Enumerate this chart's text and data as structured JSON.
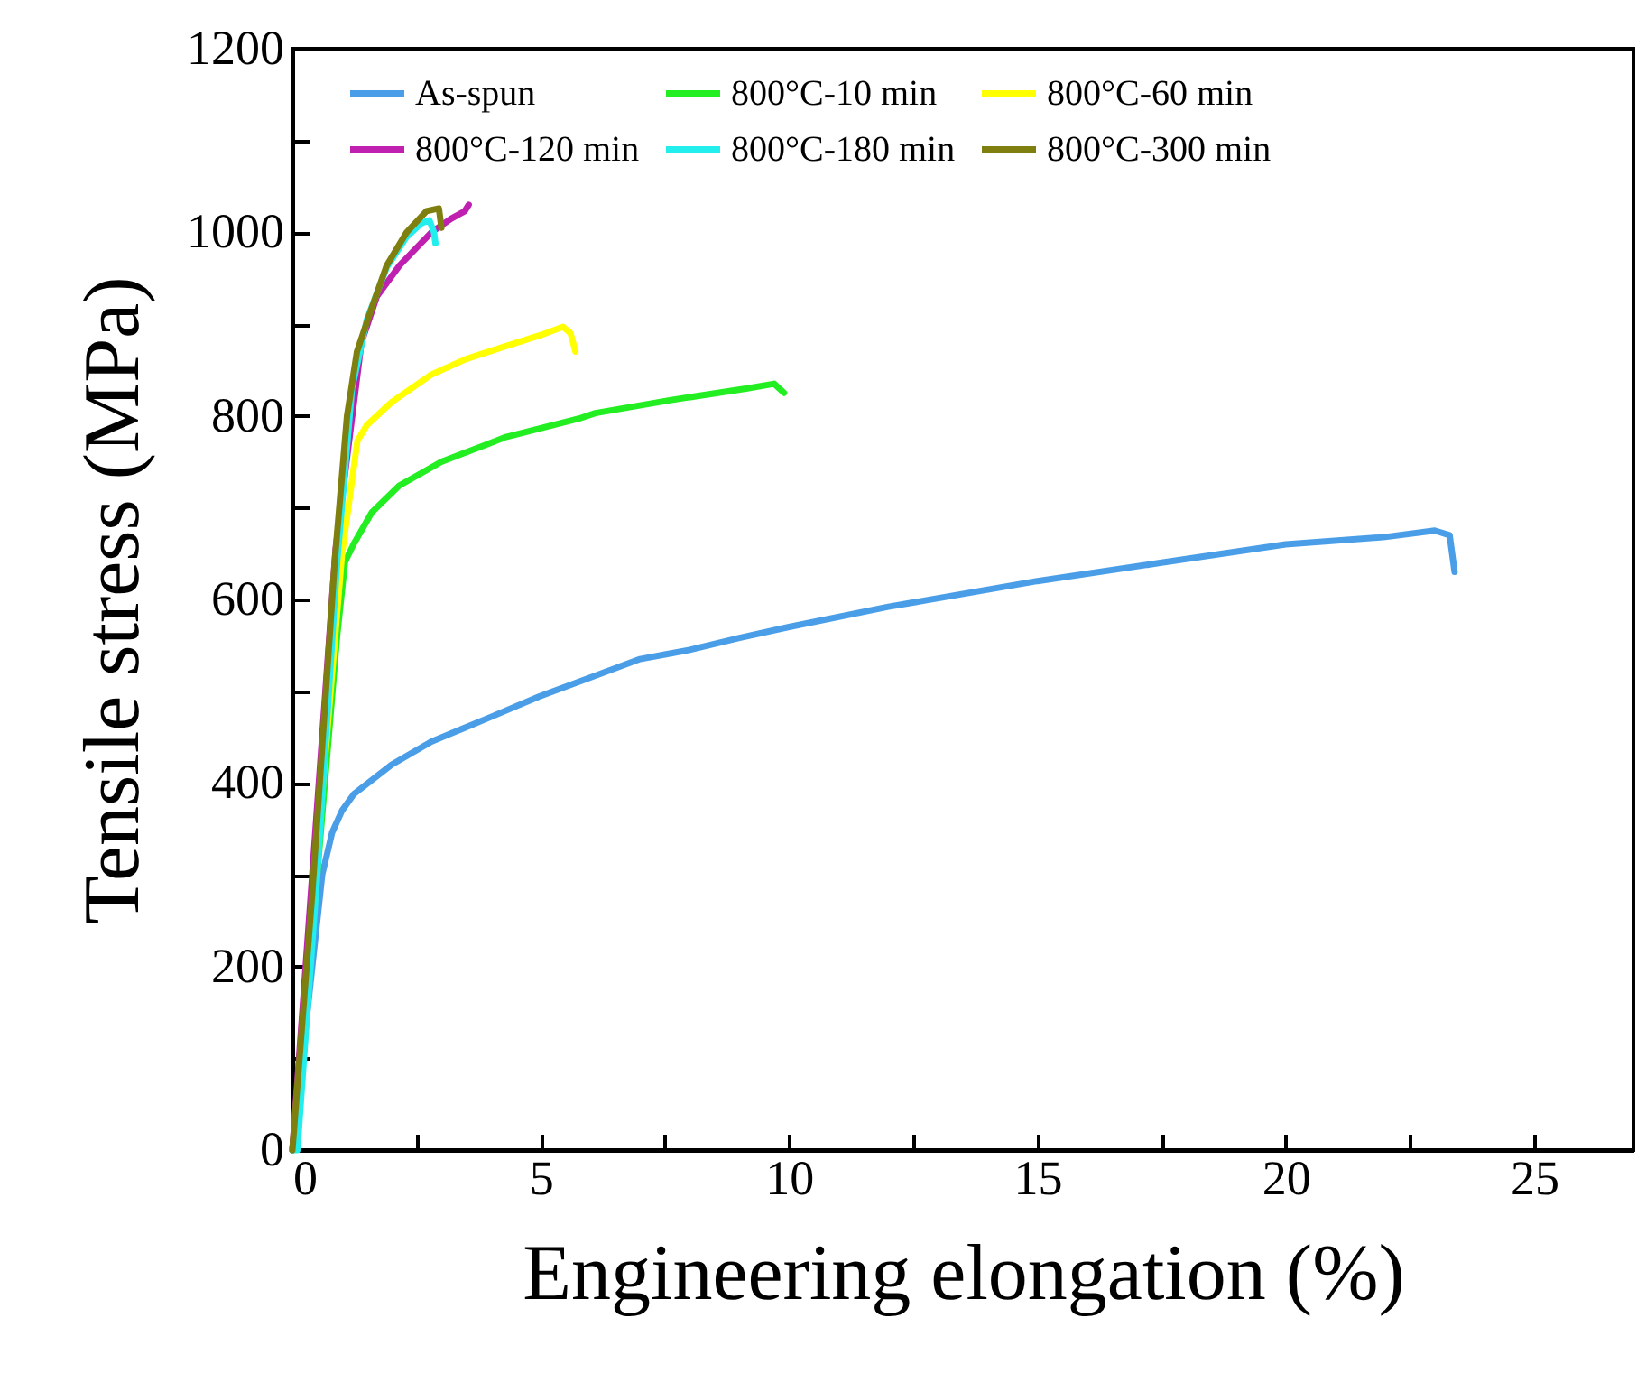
{
  "chart_data": {
    "type": "line",
    "xlabel": "Engineering elongation (%)",
    "ylabel": "Tensile stress (MPa)",
    "xlim": [
      0,
      27
    ],
    "ylim": [
      0,
      1200
    ],
    "xticks": [
      0,
      {
        "value": 2.5,
        "label": null
      },
      5,
      {
        "value": 7.5,
        "label": null
      },
      10,
      {
        "value": 12.5,
        "label": null
      },
      15,
      {
        "value": 17.5,
        "label": null
      },
      20,
      {
        "value": 22.5,
        "label": null
      },
      25
    ],
    "yticks": [
      0,
      {
        "value": 100,
        "label": null
      },
      200,
      {
        "value": 300,
        "label": null
      },
      400,
      {
        "value": 500,
        "label": null
      },
      600,
      {
        "value": 700,
        "label": null
      },
      800,
      {
        "value": 900,
        "label": null
      },
      1000,
      {
        "value": 1100,
        "label": null
      },
      1200
    ],
    "legend": "top",
    "grid": false,
    "series": [
      {
        "name": "As-spun",
        "color": "#4a9ee8",
        "x": [
          0,
          0.3,
          0.6,
          0.8,
          1.0,
          1.24,
          2,
          2.8,
          4,
          4.96,
          6,
          7,
          7.5,
          8,
          9,
          10,
          12,
          15,
          17.5,
          20,
          22,
          23,
          23.3,
          23.4
        ],
        "values": [
          0,
          150,
          300,
          346,
          370,
          388,
          420,
          445,
          472,
          494,
          515,
          535,
          540,
          545,
          558,
          570,
          592,
          620,
          640,
          660,
          668,
          675,
          670,
          630
        ]
      },
      {
        "name": "800°C-10 min",
        "color": "#22ee22",
        "x": [
          0,
          0.5,
          0.9,
          1.06,
          1.24,
          1.6,
          2.15,
          3,
          3.87,
          4.3,
          5.77,
          6.1,
          7.6,
          9.16,
          9.7,
          9.9
        ],
        "values": [
          0,
          300,
          560,
          641,
          661,
          695,
          724,
          750,
          768,
          777,
          797,
          803,
          817,
          830,
          835,
          825
        ]
      },
      {
        "name": "800°C-60 min",
        "color": "#ffff00",
        "x": [
          0,
          1.0,
          1.31,
          1.5,
          2,
          2.8,
          3.5,
          4.3,
          5,
          5.45,
          5.6,
          5.7
        ],
        "values": [
          0,
          650,
          773,
          790,
          815,
          845,
          862,
          876,
          888,
          897,
          890,
          870
        ]
      },
      {
        "name": "800°C-120 min",
        "color": "#c020b0",
        "x": [
          0,
          0.4,
          0.87,
          1.39,
          1.7,
          2.16,
          2.8,
          3.2,
          3.47,
          3.55
        ],
        "values": [
          0,
          300,
          655,
          880,
          930,
          964,
          1000,
          1015,
          1023,
          1030
        ]
      },
      {
        "name": "800°C-180 min",
        "color": "#22eeee",
        "x": [
          0,
          0.1,
          0.5,
          0.9,
          1.2,
          1.5,
          1.9,
          2.3,
          2.6,
          2.76,
          2.85,
          2.88
        ],
        "values": [
          0,
          0,
          300,
          640,
          830,
          905,
          962,
          995,
          1010,
          1013,
          1000,
          988
        ]
      },
      {
        "name": "800°C-300 min",
        "color": "#7f7f10",
        "x": [
          0,
          0.4,
          0.85,
          1.1,
          1.3,
          1.53,
          1.9,
          2.3,
          2.7,
          2.95,
          3.0
        ],
        "values": [
          0,
          280,
          640,
          800,
          870,
          907,
          964,
          1000,
          1023,
          1026,
          1005
        ]
      }
    ]
  }
}
